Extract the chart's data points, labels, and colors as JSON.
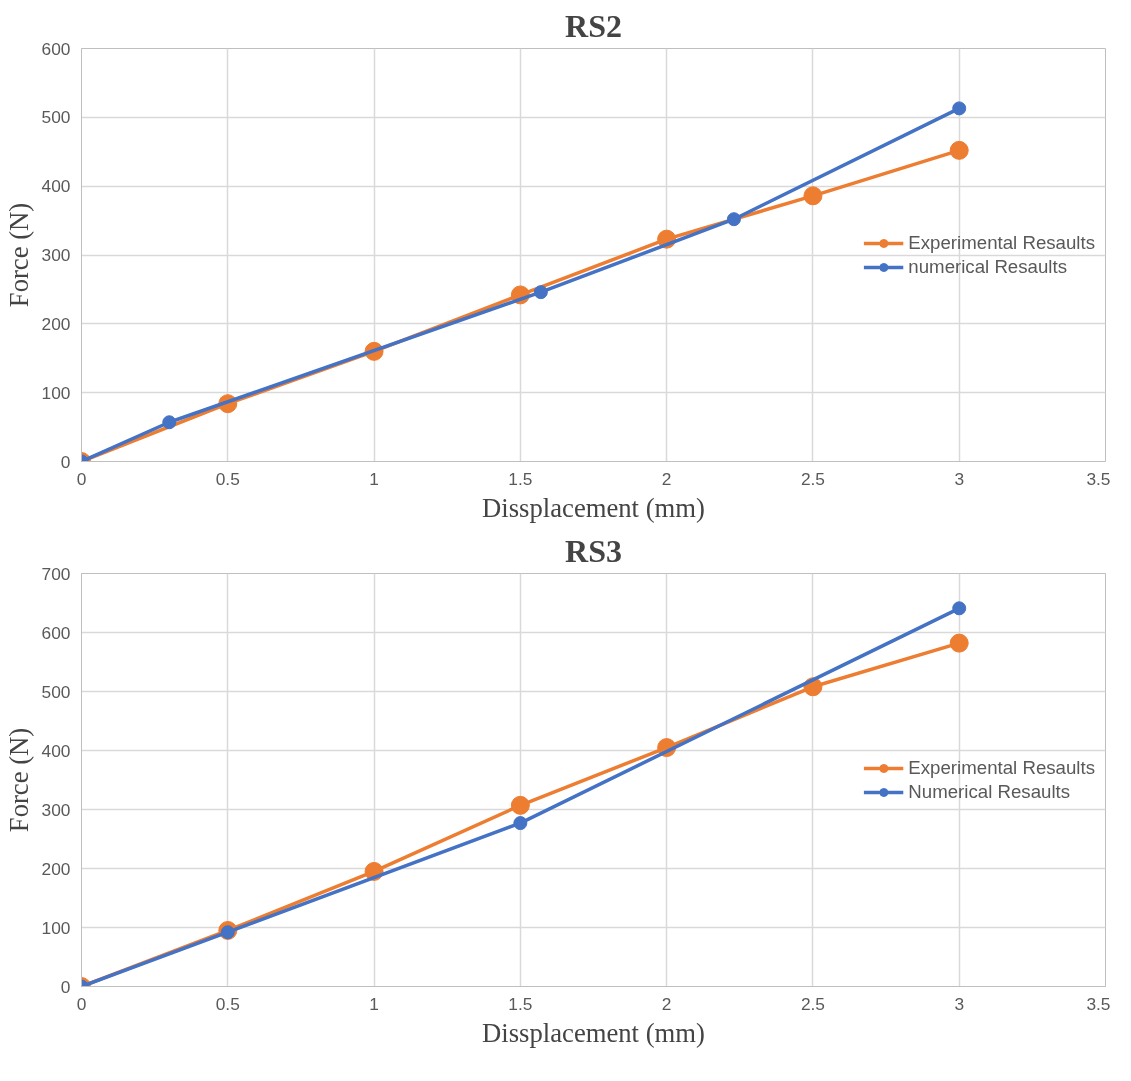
{
  "chart_data": [
    {
      "type": "line",
      "title": "RS2",
      "xlabel": "Dissplacement (mm)",
      "ylabel": "Force (N)",
      "xlim": [
        0,
        3.5
      ],
      "xticks": [
        0,
        0.5,
        1,
        1.5,
        2,
        2.5,
        3,
        3.5
      ],
      "ylim": [
        0,
        600
      ],
      "yticks": [
        0,
        100,
        200,
        300,
        400,
        500,
        600
      ],
      "grid": true,
      "legend": "right",
      "marker": "circle",
      "line_style": "solid",
      "series": [
        {
          "name": "Experimental Resaults",
          "color": "#ed7d31",
          "x": [
            0,
            0.5,
            1,
            1.5,
            2,
            2.5,
            3
          ],
          "values": [
            0,
            84,
            160,
            242,
            323,
            386,
            452
          ]
        },
        {
          "name": "numerical Resaults",
          "color": "#4472c4",
          "x": [
            0,
            0.3,
            1.57,
            2.23,
            3
          ],
          "values": [
            0,
            57,
            246,
            352,
            513
          ]
        }
      ]
    },
    {
      "type": "line",
      "title": "RS3",
      "xlabel": "Dissplacement (mm)",
      "ylabel": "Force (N)",
      "xlim": [
        0,
        3.5
      ],
      "xticks": [
        0,
        0.5,
        1,
        1.5,
        2,
        2.5,
        3,
        3.5
      ],
      "ylim": [
        0,
        700
      ],
      "yticks": [
        0,
        100,
        200,
        300,
        400,
        500,
        600,
        700
      ],
      "grid": true,
      "legend": "right",
      "marker": "circle",
      "line_style": "solid",
      "series": [
        {
          "name": "Experimental Resaults",
          "color": "#ed7d31",
          "x": [
            0,
            0.5,
            1,
            1.5,
            2,
            2.5,
            3
          ],
          "values": [
            0,
            95,
            195,
            307,
            405,
            508,
            582
          ]
        },
        {
          "name": "Numerical Resaults",
          "color": "#4472c4",
          "x": [
            0,
            0.5,
            1.5,
            3
          ],
          "values": [
            0,
            92,
            277,
            641
          ]
        }
      ]
    }
  ]
}
